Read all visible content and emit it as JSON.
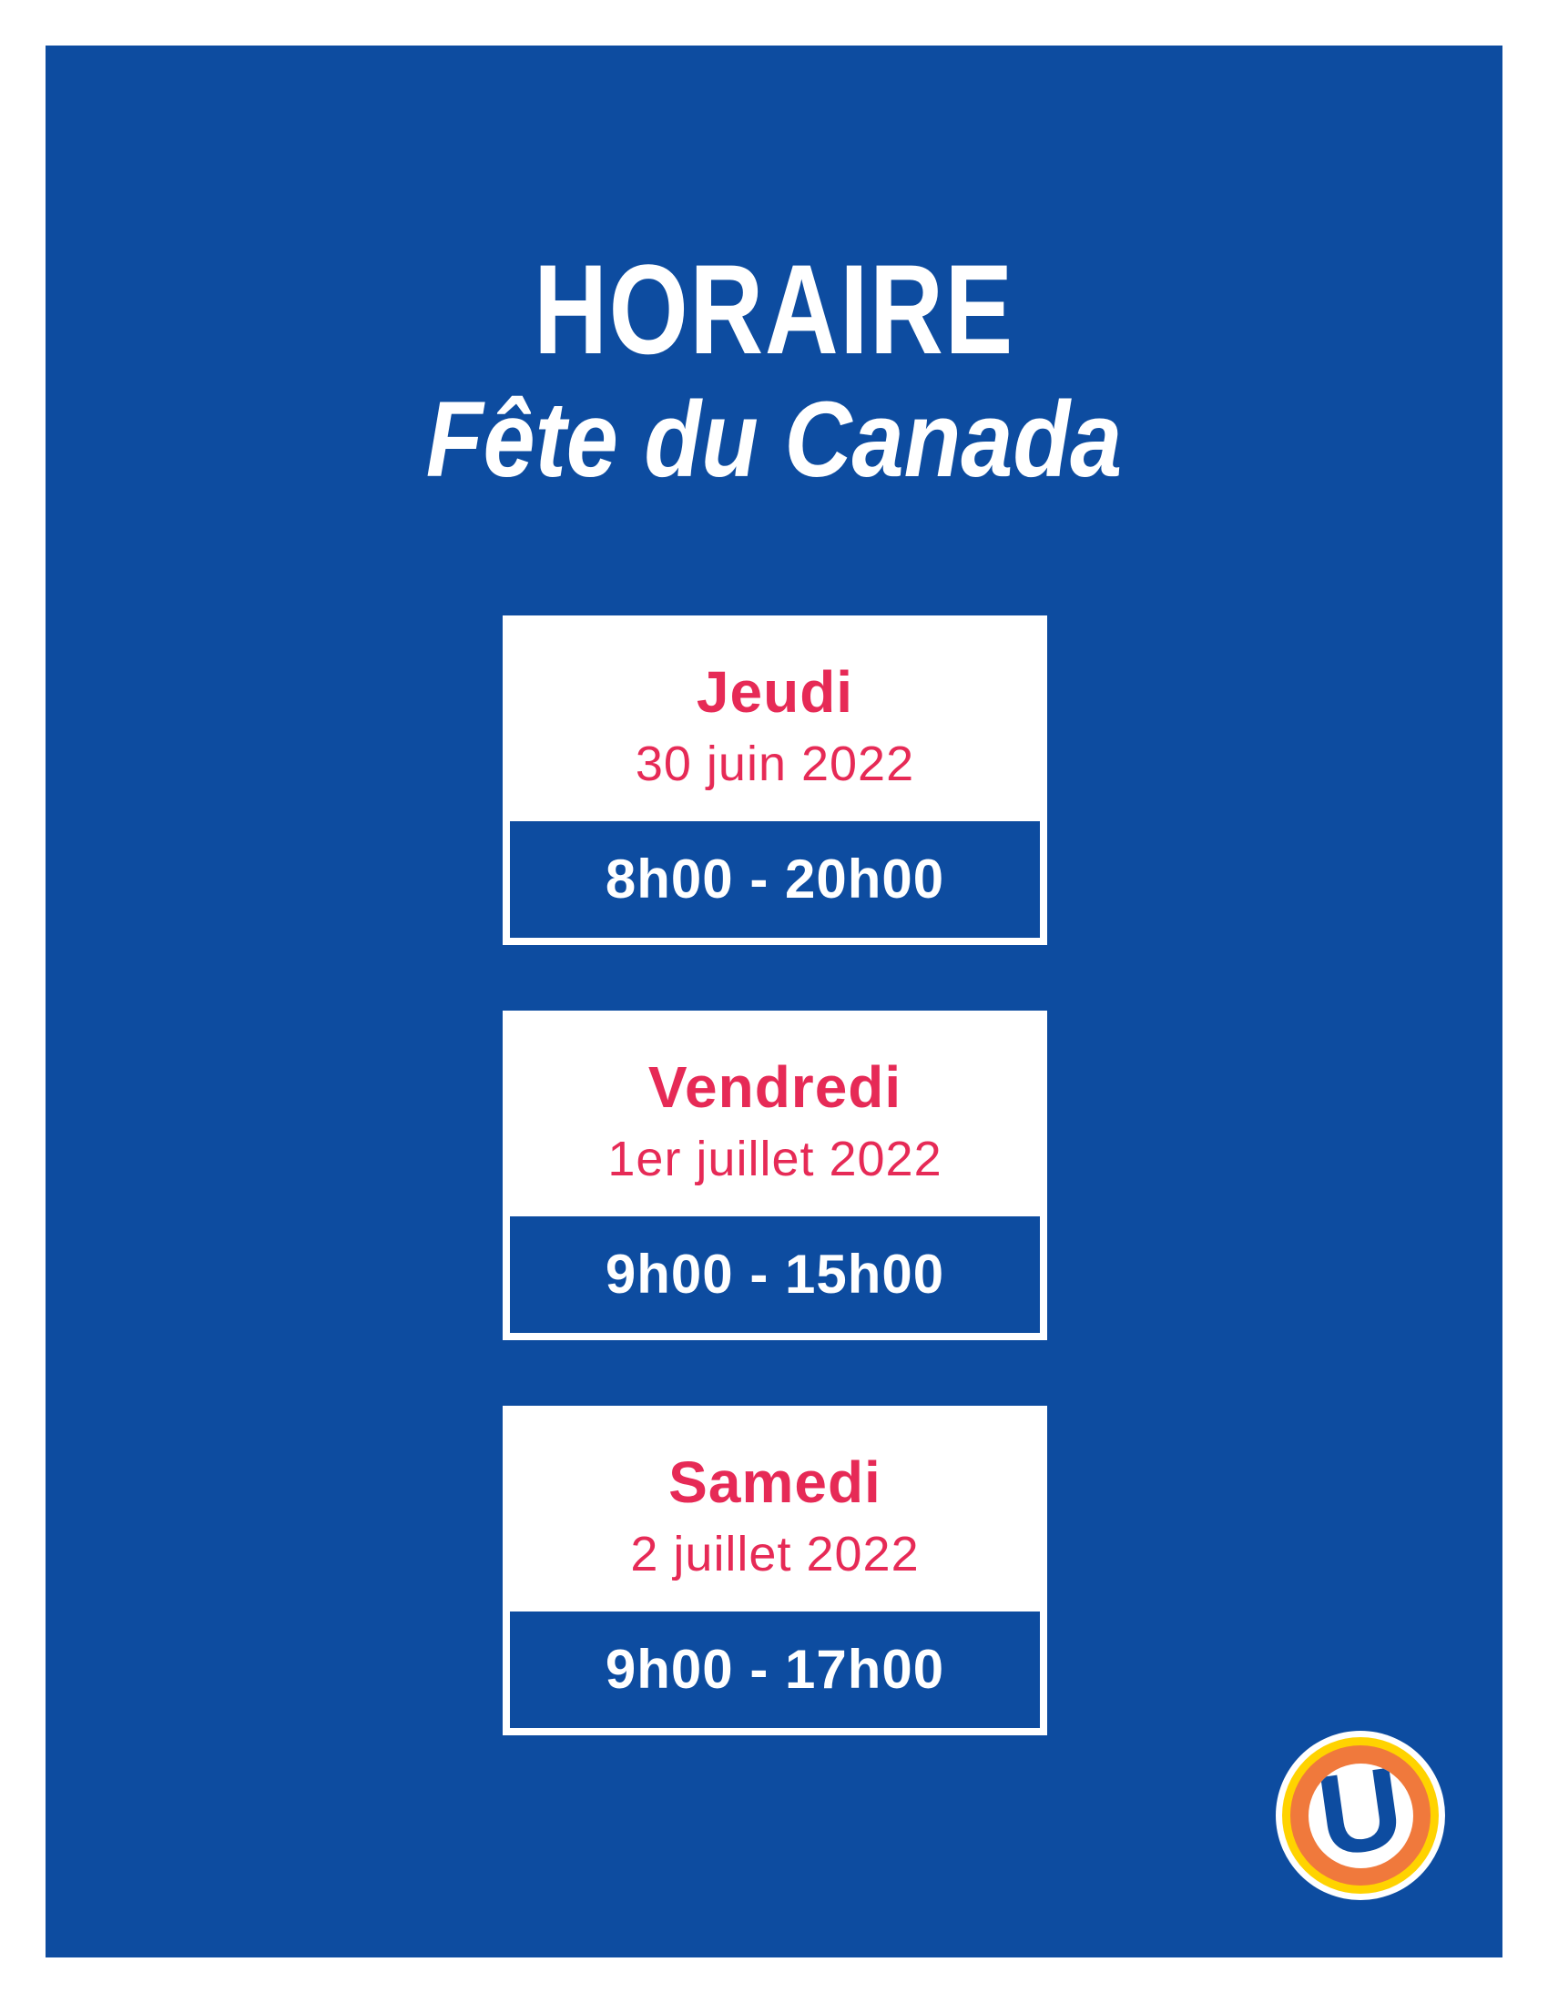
{
  "poster": {
    "title": "HORAIRE",
    "subtitle": "Fête du Canada",
    "cards": [
      {
        "day": "Jeudi",
        "date": "30 juin 2022",
        "hours": "8h00 - 20h00"
      },
      {
        "day": "Vendredi",
        "date": "1er juillet 2022",
        "hours": "9h00 - 15h00"
      },
      {
        "day": "Samedi",
        "date": "2 juillet 2022",
        "hours": "9h00 - 17h00"
      }
    ],
    "logo": {
      "letter": "U"
    },
    "colors": {
      "blue": "#0D4CA0",
      "pink": "#E62A56",
      "yellow": "#FFD300",
      "orange": "#F0793C",
      "white": "#FFFFFF"
    }
  }
}
